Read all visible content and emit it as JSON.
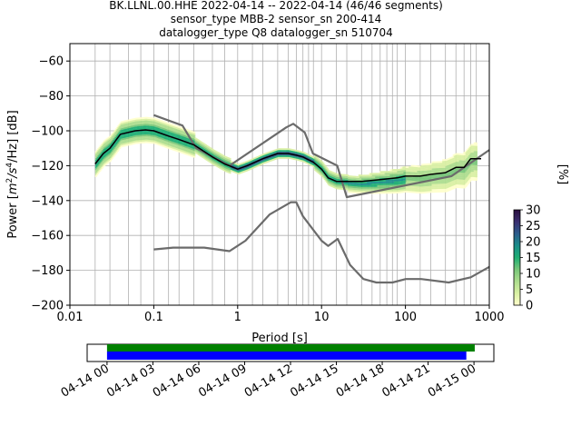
{
  "chart_data": {
    "type": "heatmap",
    "title_lines": [
      "BK.LLNL.00.HHE   2022-04-14 -- 2022-04-14  (46/46 segments)",
      "sensor_type MBB-2 sensor_sn 200-414",
      "datalogger_type Q8 datalogger_sn 510704"
    ],
    "xlabel": "Period [s]",
    "ylabel_parts": {
      "pre": "Power [",
      "m": "m",
      "e1": "2",
      "s": "/s",
      "e2": "4",
      "rest": "/Hz] [dB]"
    },
    "xscale": "log",
    "xlim": [
      0.01,
      1000
    ],
    "ylim": [
      -200,
      -50
    ],
    "x_ticks": [
      {
        "value": 0.01,
        "label": "0.01"
      },
      {
        "value": 0.1,
        "label": "0.1"
      },
      {
        "value": 1,
        "label": "1"
      },
      {
        "value": 10,
        "label": "10"
      },
      {
        "value": 100,
        "label": "100"
      },
      {
        "value": 1000,
        "label": "1000"
      }
    ],
    "y_ticks": [
      {
        "value": -60,
        "label": "−60"
      },
      {
        "value": -80,
        "label": "−80"
      },
      {
        "value": -100,
        "label": "−100"
      },
      {
        "value": -120,
        "label": "−120"
      },
      {
        "value": -140,
        "label": "−140"
      },
      {
        "value": -160,
        "label": "−160"
      },
      {
        "value": -180,
        "label": "−180"
      },
      {
        "value": -200,
        "label": "−200"
      }
    ],
    "grid": true,
    "grid_periods": [
      0.02,
      0.03,
      0.05,
      0.07,
      0.1,
      0.15,
      0.2,
      0.3,
      0.5,
      0.7,
      1,
      1.5,
      2,
      3,
      4,
      5,
      6,
      7,
      8,
      10,
      15,
      20,
      30,
      40,
      50,
      60,
      70,
      80,
      100,
      150,
      200,
      300,
      400,
      500,
      600,
      700
    ],
    "mode_curve": [
      [
        0.02,
        -119
      ],
      [
        0.025,
        -113
      ],
      [
        0.03,
        -110
      ],
      [
        0.04,
        -102
      ],
      [
        0.06,
        -100
      ],
      [
        0.08,
        -99.5
      ],
      [
        0.1,
        -100
      ],
      [
        0.15,
        -103
      ],
      [
        0.2,
        -105
      ],
      [
        0.3,
        -108
      ],
      [
        0.5,
        -115
      ],
      [
        0.7,
        -119
      ],
      [
        1,
        -122
      ],
      [
        1.3,
        -120
      ],
      [
        2,
        -116
      ],
      [
        3,
        -113
      ],
      [
        4,
        -113
      ],
      [
        5,
        -114
      ],
      [
        6,
        -115
      ],
      [
        8,
        -118
      ],
      [
        10,
        -122
      ],
      [
        12,
        -127
      ],
      [
        15,
        -129
      ],
      [
        20,
        -129
      ],
      [
        30,
        -129
      ],
      [
        50,
        -128
      ],
      [
        80,
        -127
      ],
      [
        100,
        -126
      ],
      [
        150,
        -126
      ],
      [
        200,
        -125
      ],
      [
        300,
        -124
      ],
      [
        400,
        -121
      ],
      [
        500,
        -121
      ],
      [
        600,
        -116
      ],
      [
        700,
        -116
      ],
      [
        800,
        -116
      ]
    ],
    "nhnm_curve": [
      [
        0.1,
        -91
      ],
      [
        0.22,
        -97
      ],
      [
        0.32,
        -110
      ],
      [
        0.8,
        -120
      ],
      [
        3.8,
        -98
      ],
      [
        4.6,
        -96
      ],
      [
        6.3,
        -101
      ],
      [
        7.9,
        -113
      ],
      [
        15.4,
        -120
      ],
      [
        20,
        -138
      ],
      [
        354.8,
        -126
      ],
      [
        1000,
        -111
      ]
    ],
    "nlnm_curve": [
      [
        0.1,
        -168
      ],
      [
        0.17,
        -167
      ],
      [
        0.4,
        -167
      ],
      [
        0.8,
        -169
      ],
      [
        1.24,
        -163
      ],
      [
        2.4,
        -148
      ],
      [
        4.3,
        -141
      ],
      [
        5,
        -141
      ],
      [
        6,
        -149
      ],
      [
        10,
        -163
      ],
      [
        12,
        -166
      ],
      [
        15.6,
        -162
      ],
      [
        21.9,
        -177
      ],
      [
        31.6,
        -185
      ],
      [
        45,
        -187
      ],
      [
        70,
        -187
      ],
      [
        101,
        -185
      ],
      [
        154,
        -185
      ],
      [
        328,
        -187
      ],
      [
        600,
        -184
      ],
      [
        1000,
        -178
      ]
    ],
    "colorbar": {
      "label": "[%]",
      "min": 0,
      "max": 30,
      "ticks": [
        {
          "value": 0,
          "label": "0"
        },
        {
          "value": 5,
          "label": "5"
        },
        {
          "value": 10,
          "label": "10"
        },
        {
          "value": 15,
          "label": "15"
        },
        {
          "value": 20,
          "label": "20"
        },
        {
          "value": 25,
          "label": "25"
        },
        {
          "value": 30,
          "label": "30"
        }
      ]
    },
    "colors": {
      "mode": "#000000",
      "noise_models": "#6b6b6b",
      "grid": "#b0b0b0",
      "data_coverage": "#008000",
      "psd_coverage": "#0000ff",
      "cmap": [
        "#ffffcc",
        "#d9f0a3",
        "#addd8e",
        "#78c679",
        "#1eae73",
        "#1a8d8a",
        "#2b5c8c",
        "#3b2f70",
        "#2a0f3e"
      ]
    },
    "timeline": {
      "range_hours": [
        -1.3,
        25.3
      ],
      "ticks": [
        {
          "hour": 0,
          "label": "04-14 00"
        },
        {
          "hour": 3,
          "label": "04-14 03"
        },
        {
          "hour": 6,
          "label": "04-14 06"
        },
        {
          "hour": 9,
          "label": "04-14 09"
        },
        {
          "hour": 12,
          "label": "04-14 12"
        },
        {
          "hour": 15,
          "label": "04-14 15"
        },
        {
          "hour": 18,
          "label": "04-14 18"
        },
        {
          "hour": 21,
          "label": "04-14 21"
        },
        {
          "hour": 24,
          "label": "04-15 00"
        }
      ],
      "data_coverage_hours": [
        0,
        24.05
      ],
      "psd_coverage_hours": [
        0,
        23.5
      ]
    }
  }
}
